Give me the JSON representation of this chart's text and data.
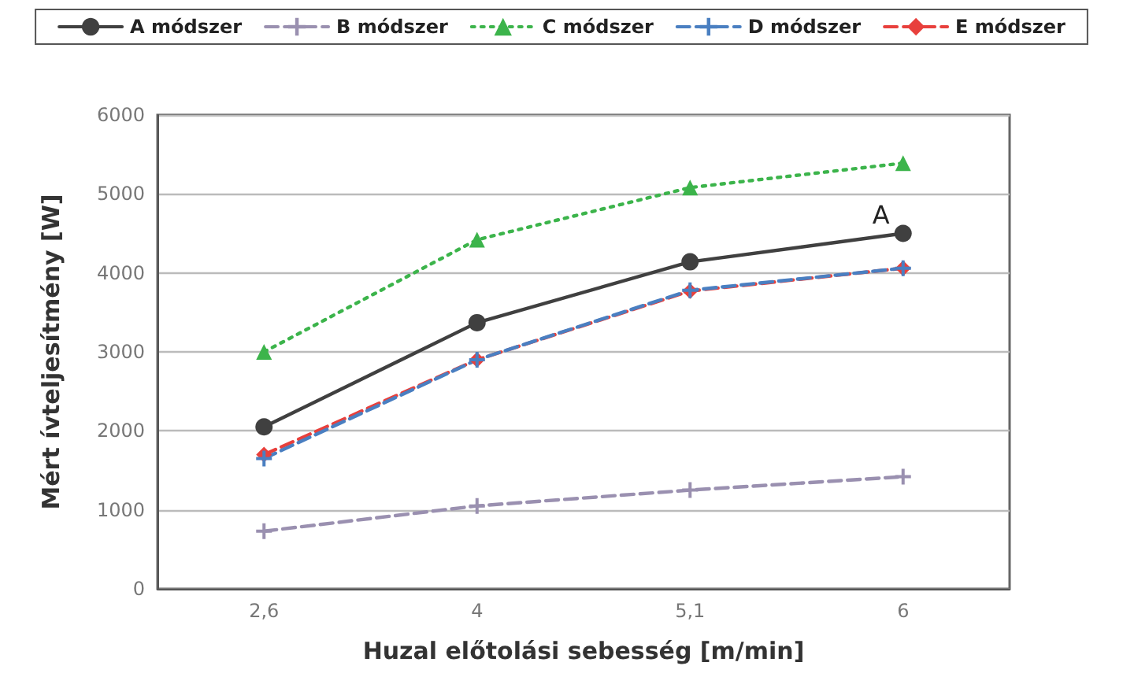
{
  "chart_data": {
    "type": "line",
    "xlabel": "Huzal előtolási sebesség [m/min]",
    "ylabel": "Mért ívteljesítmény [W]",
    "categories": [
      "2,6",
      "4",
      "5,1",
      "6"
    ],
    "series": [
      {
        "name": "A módszer",
        "color": "#404040",
        "marker": "circle",
        "line_style": "solid",
        "values": [
          2050,
          3370,
          4140,
          4500
        ]
      },
      {
        "name": "B módszer",
        "color": "#9a90b0",
        "marker": "cross",
        "line_style": "dashed",
        "values": [
          730,
          1050,
          1250,
          1420
        ]
      },
      {
        "name": "C módszer",
        "color": "#3cb44b",
        "marker": "triangle",
        "line_style": "dotted",
        "values": [
          3000,
          4420,
          5080,
          5390
        ]
      },
      {
        "name": "D módszer",
        "color": "#4a7fc1",
        "marker": "cross",
        "line_style": "dashed",
        "values": [
          1650,
          2900,
          3780,
          4060
        ]
      },
      {
        "name": "E módszer",
        "color": "#e8403c",
        "marker": "diamond",
        "line_style": "dashed",
        "values": [
          1700,
          2900,
          3770,
          4060
        ]
      }
    ],
    "ylim": [
      0,
      6000
    ],
    "yticks": [
      0,
      1000,
      2000,
      3000,
      4000,
      5000,
      6000
    ],
    "grid": "y",
    "legend": "top",
    "annotations": [
      {
        "text": "A",
        "x": "6",
        "y": 4500
      }
    ]
  }
}
